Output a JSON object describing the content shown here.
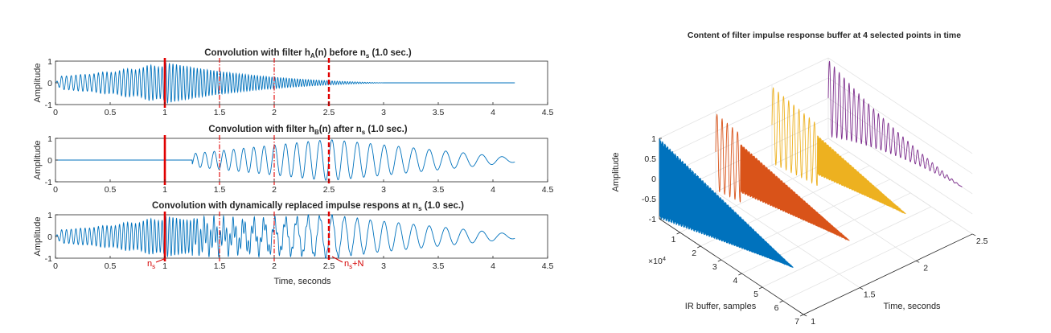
{
  "colors": {
    "blue": "#0072BD",
    "orange": "#D95319",
    "yellow": "#EDB120",
    "purple": "#7E2F8E",
    "marker": "#E00000"
  },
  "chart_data": [
    {
      "type": "line",
      "panel": "top",
      "title": "Convolution with filter h_A(n) before n_s (1.0 sec.)",
      "title_parts": {
        "a": "Convolution with filter h",
        "sub": "A",
        "b": "(n) before n",
        "sub2": "s",
        "c": " (1.0 sec.)"
      },
      "ylabel": "Amplitude",
      "xlabel": "",
      "xlim": [
        0,
        4.5
      ],
      "ylim": [
        -1,
        1
      ],
      "xticks": [
        "0",
        "0.5",
        "1",
        "1.5",
        "2",
        "2.5",
        "3",
        "3.5",
        "4",
        "4.5"
      ],
      "yticks": [
        "-1",
        "0",
        "1"
      ],
      "signal": "swept oscillation, growing to ~0.95 at 1.0 s, decaying to ~0 by 3.0 s, flat until 4.2 s",
      "vlines": [
        {
          "x": 1.0,
          "style": "solid"
        },
        {
          "x": 1.5,
          "style": "dashdot"
        },
        {
          "x": 2.0,
          "style": "dashdot"
        },
        {
          "x": 2.5,
          "style": "dashed"
        }
      ]
    },
    {
      "type": "line",
      "panel": "middle",
      "title": "Convolution with filter h_B(n) after n_s (1.0 sec.)",
      "title_parts": {
        "a": "Convolution with filter h",
        "sub": "B",
        "b": "(n) after n",
        "sub2": "s",
        "c": " (1.0 sec.)"
      },
      "ylabel": "Amplitude",
      "xlabel": "",
      "xlim": [
        0,
        4.5
      ],
      "ylim": [
        -1,
        1
      ],
      "xticks": [
        "0",
        "0.5",
        "1",
        "1.5",
        "2",
        "2.5",
        "3",
        "3.5",
        "4",
        "4.5"
      ],
      "yticks": [
        "-1",
        "0",
        "1"
      ],
      "signal": "zero until ~1.25 s, oscillation growing to ~0.95 at ~2.5 s, decaying to ~0.1 at 4.2 s",
      "vlines": [
        {
          "x": 1.0,
          "style": "solid"
        },
        {
          "x": 1.5,
          "style": "dashdot"
        },
        {
          "x": 2.0,
          "style": "dashdot"
        },
        {
          "x": 2.5,
          "style": "dashed"
        }
      ]
    },
    {
      "type": "line",
      "panel": "bottom",
      "title": "Convolution with dynamically replaced impulse respons at n_s (1.0 sec.)",
      "title_parts": {
        "a": "Convolution with dynamically replaced impulse respons at n",
        "sub": "s",
        "c": " (1.0 sec.)"
      },
      "ylabel": "Amplitude",
      "xlabel": "Time, seconds",
      "xlim": [
        0,
        4.5
      ],
      "ylim": [
        -1,
        1
      ],
      "xticks": [
        "0",
        "0.5",
        "1",
        "1.5",
        "2",
        "2.5",
        "3",
        "3.5",
        "4",
        "4.5"
      ],
      "yticks": [
        "-1",
        "0",
        "1"
      ],
      "signal": "sum of the two above; ~0.95 throughout 1.0–2.5 s, decaying to ~0.1 at 4.2 s",
      "vlines": [
        {
          "x": 1.0,
          "style": "solid"
        },
        {
          "x": 1.5,
          "style": "dashdot"
        },
        {
          "x": 2.0,
          "style": "dashdot"
        },
        {
          "x": 2.5,
          "style": "dashed"
        }
      ],
      "annotations": [
        {
          "text": "n_s",
          "base": "n",
          "sub": "s",
          "x": 1.0
        },
        {
          "text": "n_s+N",
          "base": "n",
          "sub": "s",
          "suffix": "+N",
          "x": 2.5
        }
      ]
    },
    {
      "type": "line",
      "panel": "3d",
      "title": "Content of filter impulse response buffer at 4 selected points in time",
      "xlabel": "IR buffer, samples",
      "ylabel": "Time, seconds",
      "zlabel": "Amplitude",
      "x_exponent": "×10^4",
      "x_exponent_parts": {
        "base": "×10",
        "exp": "4"
      },
      "xlim": [
        0,
        7
      ],
      "ylim": [
        1,
        2.5
      ],
      "zlim": [
        -1,
        1
      ],
      "xticks": [
        "1",
        "2",
        "3",
        "4",
        "5",
        "6",
        "7"
      ],
      "yticks": [
        "1",
        "1.5",
        "2",
        "2.5"
      ],
      "zticks": [
        "-1",
        "-0.5",
        "0",
        "0.5",
        "1"
      ],
      "series": [
        {
          "time": 1.0,
          "color": "#0072BD",
          "shape": "dense decaying oscillation, peak ~1 at start, decays to 0 near 6.5e4 samples"
        },
        {
          "time": 1.5,
          "color": "#D95319",
          "shape": "slow oscillation then dense decaying region"
        },
        {
          "time": 2.0,
          "color": "#EDB120",
          "shape": "slow oscillation then dense decaying region"
        },
        {
          "time": 2.5,
          "color": "#7E2F8E",
          "shape": "slow decaying oscillation across buffer"
        }
      ]
    }
  ]
}
